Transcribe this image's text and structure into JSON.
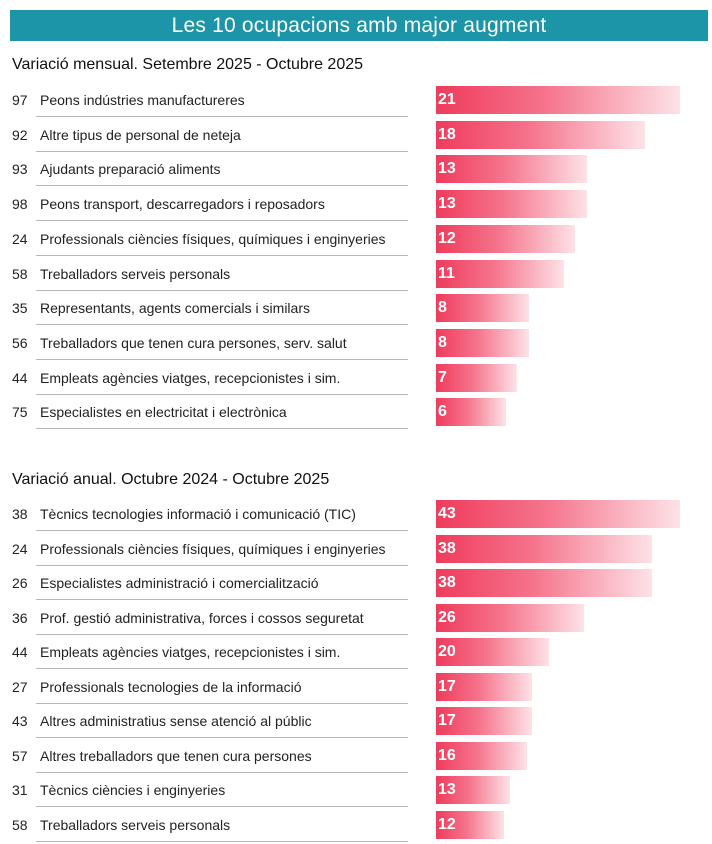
{
  "header": {
    "title": "Les 10 ocupacions amb major augment"
  },
  "chart_data": [
    {
      "type": "bar",
      "orientation": "horizontal",
      "title": "Variació mensual. Setembre 2025 - Octubre 2025",
      "codes": [
        "97",
        "92",
        "93",
        "98",
        "24",
        "58",
        "35",
        "56",
        "44",
        "75"
      ],
      "categories": [
        "Peons indústries manufactureres",
        "Altre tipus de personal de neteja",
        "Ajudants preparació aliments",
        "Peons transport, descarregadors i reposadors",
        "Professionals ciències físiques, químiques i enginyeries",
        "Treballadors serveis personals",
        "Representants, agents comercials i similars",
        "Treballadors que tenen cura persones, serv. salut",
        "Empleats agències viatges, recepcionistes i sim.",
        "Especialistes en electricitat i electrònica"
      ],
      "values": [
        21,
        18,
        13,
        13,
        12,
        11,
        8,
        8,
        7,
        6
      ],
      "xlim": [
        0,
        21
      ],
      "grid": false,
      "bar_color": "#ef3b5c"
    },
    {
      "type": "bar",
      "orientation": "horizontal",
      "title": "Variació anual.  Octubre 2024 - Octubre 2025",
      "codes": [
        "38",
        "24",
        "26",
        "36",
        "44",
        "27",
        "43",
        "57",
        "31",
        "58"
      ],
      "categories": [
        "Tècnics tecnologies informació i comunicació (TIC)",
        "Professionals ciències físiques, químiques i enginyeries",
        "Especialistes administració i comercialització",
        "Prof. gestió administrativa, forces i cossos seguretat",
        "Empleats agències viatges, recepcionistes i sim.",
        "Professionals tecnologies de la informació",
        "Altres administratius sense atenció al públic",
        "Altres treballadors que tenen cura persones",
        "Tècnics ciències i enginyeries",
        "Treballadors serveis personals"
      ],
      "values": [
        43,
        38,
        38,
        26,
        20,
        17,
        17,
        16,
        13,
        12
      ],
      "xlim": [
        0,
        43
      ],
      "grid": false,
      "bar_color": "#ef3b5c"
    }
  ]
}
